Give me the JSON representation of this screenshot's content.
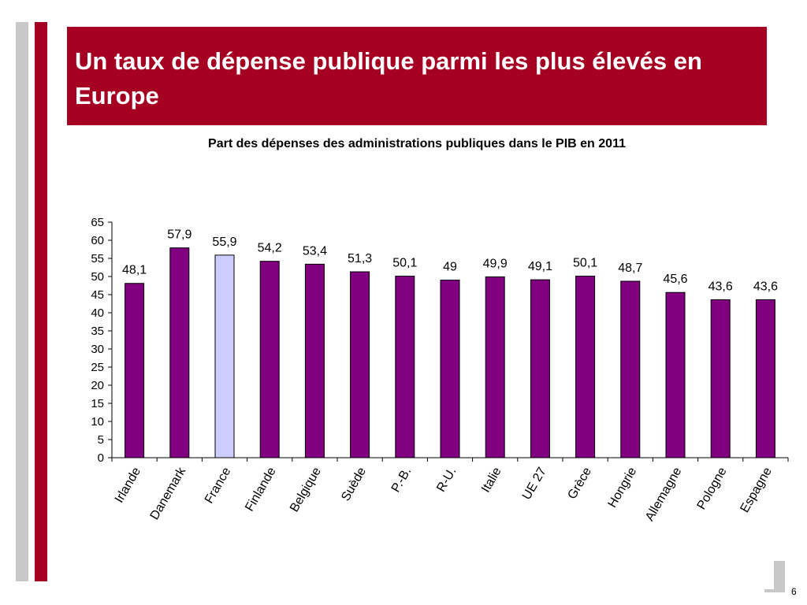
{
  "slide": {
    "title": "Un taux de dépense publique parmi les plus élevés en Europe",
    "page_number": "6",
    "accent_color": "#a50021",
    "side_bar_color": "#c8c8c8"
  },
  "chart_data": {
    "type": "bar",
    "title": "Part des dépenses des administrations publiques dans le PIB en 2011",
    "xlabel": "",
    "ylabel": "",
    "ylim": [
      0,
      65
    ],
    "ytick_step": 5,
    "grid": false,
    "categories": [
      "Irlande",
      "Danemark",
      "France",
      "Finlande",
      "Belgique",
      "Suède",
      "P.-B.",
      "R-U.",
      "Italie",
      "UE 27",
      "Grèce",
      "Hongrie",
      "Allemagne",
      "Pologne",
      "Espagne"
    ],
    "values": [
      48.1,
      57.9,
      55.9,
      54.2,
      53.4,
      51.3,
      50.1,
      49,
      49.9,
      49.1,
      50.1,
      48.7,
      45.6,
      43.6,
      43.6
    ],
    "value_labels": [
      "48,1",
      "57,9",
      "55,9",
      "54,2",
      "53,4",
      "51,3",
      "50,1",
      "49",
      "49,9",
      "49,1",
      "50,1",
      "48,7",
      "45,6",
      "43,6",
      "43,6"
    ],
    "bar_color": "#800080",
    "highlight_category": "France",
    "highlight_color": "#ccccff"
  }
}
